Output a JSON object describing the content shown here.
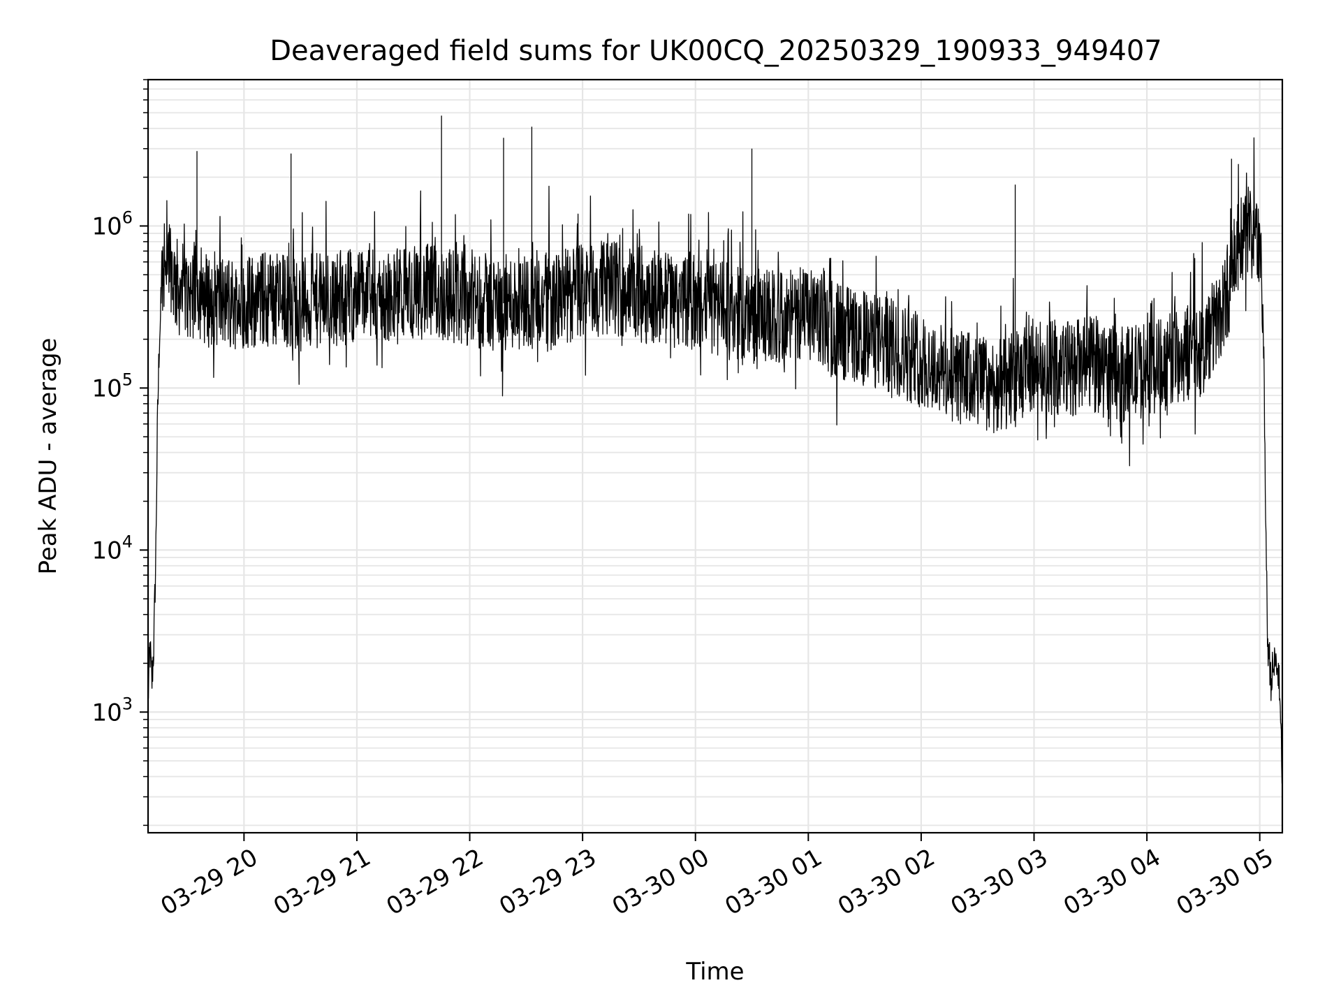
{
  "chart_data": {
    "type": "line",
    "title": "Deaveraged field sums for UK00CQ_20250329_190933_949407",
    "xlabel": "Time",
    "ylabel": "Peak ADU - average",
    "y_scale": "log",
    "ylim": [
      180,
      8000000
    ],
    "xlim": [
      "03-29 19:09",
      "03-30 05:12"
    ],
    "grid": true,
    "line_color": "#000000",
    "grid_color": "#e6e6e6",
    "x_ticks": [
      {
        "t": "03-29 20:00",
        "label": "03-29 20"
      },
      {
        "t": "03-29 21:00",
        "label": "03-29 21"
      },
      {
        "t": "03-29 22:00",
        "label": "03-29 22"
      },
      {
        "t": "03-29 23:00",
        "label": "03-29 23"
      },
      {
        "t": "03-30 00:00",
        "label": "03-30 00"
      },
      {
        "t": "03-30 01:00",
        "label": "03-30 01"
      },
      {
        "t": "03-30 02:00",
        "label": "03-30 02"
      },
      {
        "t": "03-30 03:00",
        "label": "03-30 03"
      },
      {
        "t": "03-30 04:00",
        "label": "03-30 04"
      },
      {
        "t": "03-30 05:00",
        "label": "03-30 05"
      }
    ],
    "y_ticks": [
      {
        "value": 1000,
        "base": "10",
        "exp": "3"
      },
      {
        "value": 10000,
        "base": "10",
        "exp": "4"
      },
      {
        "value": 100000,
        "base": "10",
        "exp": "5"
      },
      {
        "value": 1000000,
        "base": "10",
        "exp": "6"
      }
    ],
    "series": [
      {
        "x": [
          "03-29 19:09",
          "03-29 19:10",
          "03-29 19:11",
          "03-29 19:12",
          "03-29 19:13",
          "03-29 19:14",
          "03-29 19:15",
          "03-29 19:17",
          "03-29 19:20",
          "03-29 19:23",
          "03-29 19:26",
          "03-29 19:30",
          "03-29 19:35",
          "03-29 19:40",
          "03-29 19:45",
          "03-29 19:50",
          "03-29 20:00",
          "03-29 20:15",
          "03-29 20:30",
          "03-29 20:45",
          "03-29 21:00",
          "03-29 21:15",
          "03-29 21:30",
          "03-29 21:45",
          "03-29 22:00",
          "03-29 22:15",
          "03-29 22:30",
          "03-29 22:45",
          "03-29 23:00",
          "03-29 23:15",
          "03-29 23:30",
          "03-29 23:45",
          "03-30 00:00",
          "03-30 00:15",
          "03-30 00:30",
          "03-30 00:45",
          "03-30 01:00",
          "03-30 01:15",
          "03-30 01:30",
          "03-30 01:45",
          "03-30 02:00",
          "03-30 02:15",
          "03-30 02:30",
          "03-30 02:45",
          "03-30 03:00",
          "03-30 03:15",
          "03-30 03:30",
          "03-30 03:45",
          "03-30 04:00",
          "03-30 04:15",
          "03-30 04:30",
          "03-30 04:40",
          "03-30 04:45",
          "03-30 04:50",
          "03-30 04:55",
          "03-30 05:00",
          "03-30 05:02",
          "03-30 05:04",
          "03-30 05:06",
          "03-30 05:08",
          "03-30 05:10",
          "03-30 05:12"
        ],
        "y": [
          1200,
          2500,
          1500,
          2500,
          8000,
          60000,
          200000,
          600000,
          700000,
          450000,
          400000,
          380000,
          420000,
          350000,
          360000,
          330000,
          340000,
          360000,
          330000,
          350000,
          380000,
          350000,
          400000,
          380000,
          360000,
          330000,
          350000,
          340000,
          400000,
          420000,
          380000,
          360000,
          330000,
          300000,
          280000,
          270000,
          280000,
          230000,
          200000,
          180000,
          150000,
          120000,
          110000,
          100000,
          140000,
          130000,
          140000,
          120000,
          130000,
          150000,
          180000,
          300000,
          500000,
          800000,
          1000000,
          800000,
          200000,
          3000,
          1600,
          2000,
          1800,
          400
        ],
        "peaks": [
          {
            "x": "03-29 19:35",
            "y": 2900000
          },
          {
            "x": "03-29 20:25",
            "y": 2800000
          },
          {
            "x": "03-29 21:45",
            "y": 4800000
          },
          {
            "x": "03-29 22:18",
            "y": 3500000
          },
          {
            "x": "03-29 22:33",
            "y": 4100000
          },
          {
            "x": "03-30 00:30",
            "y": 3000000
          },
          {
            "x": "03-30 02:50",
            "y": 1800000
          },
          {
            "x": "03-30 04:45",
            "y": 2600000
          }
        ]
      }
    ]
  }
}
